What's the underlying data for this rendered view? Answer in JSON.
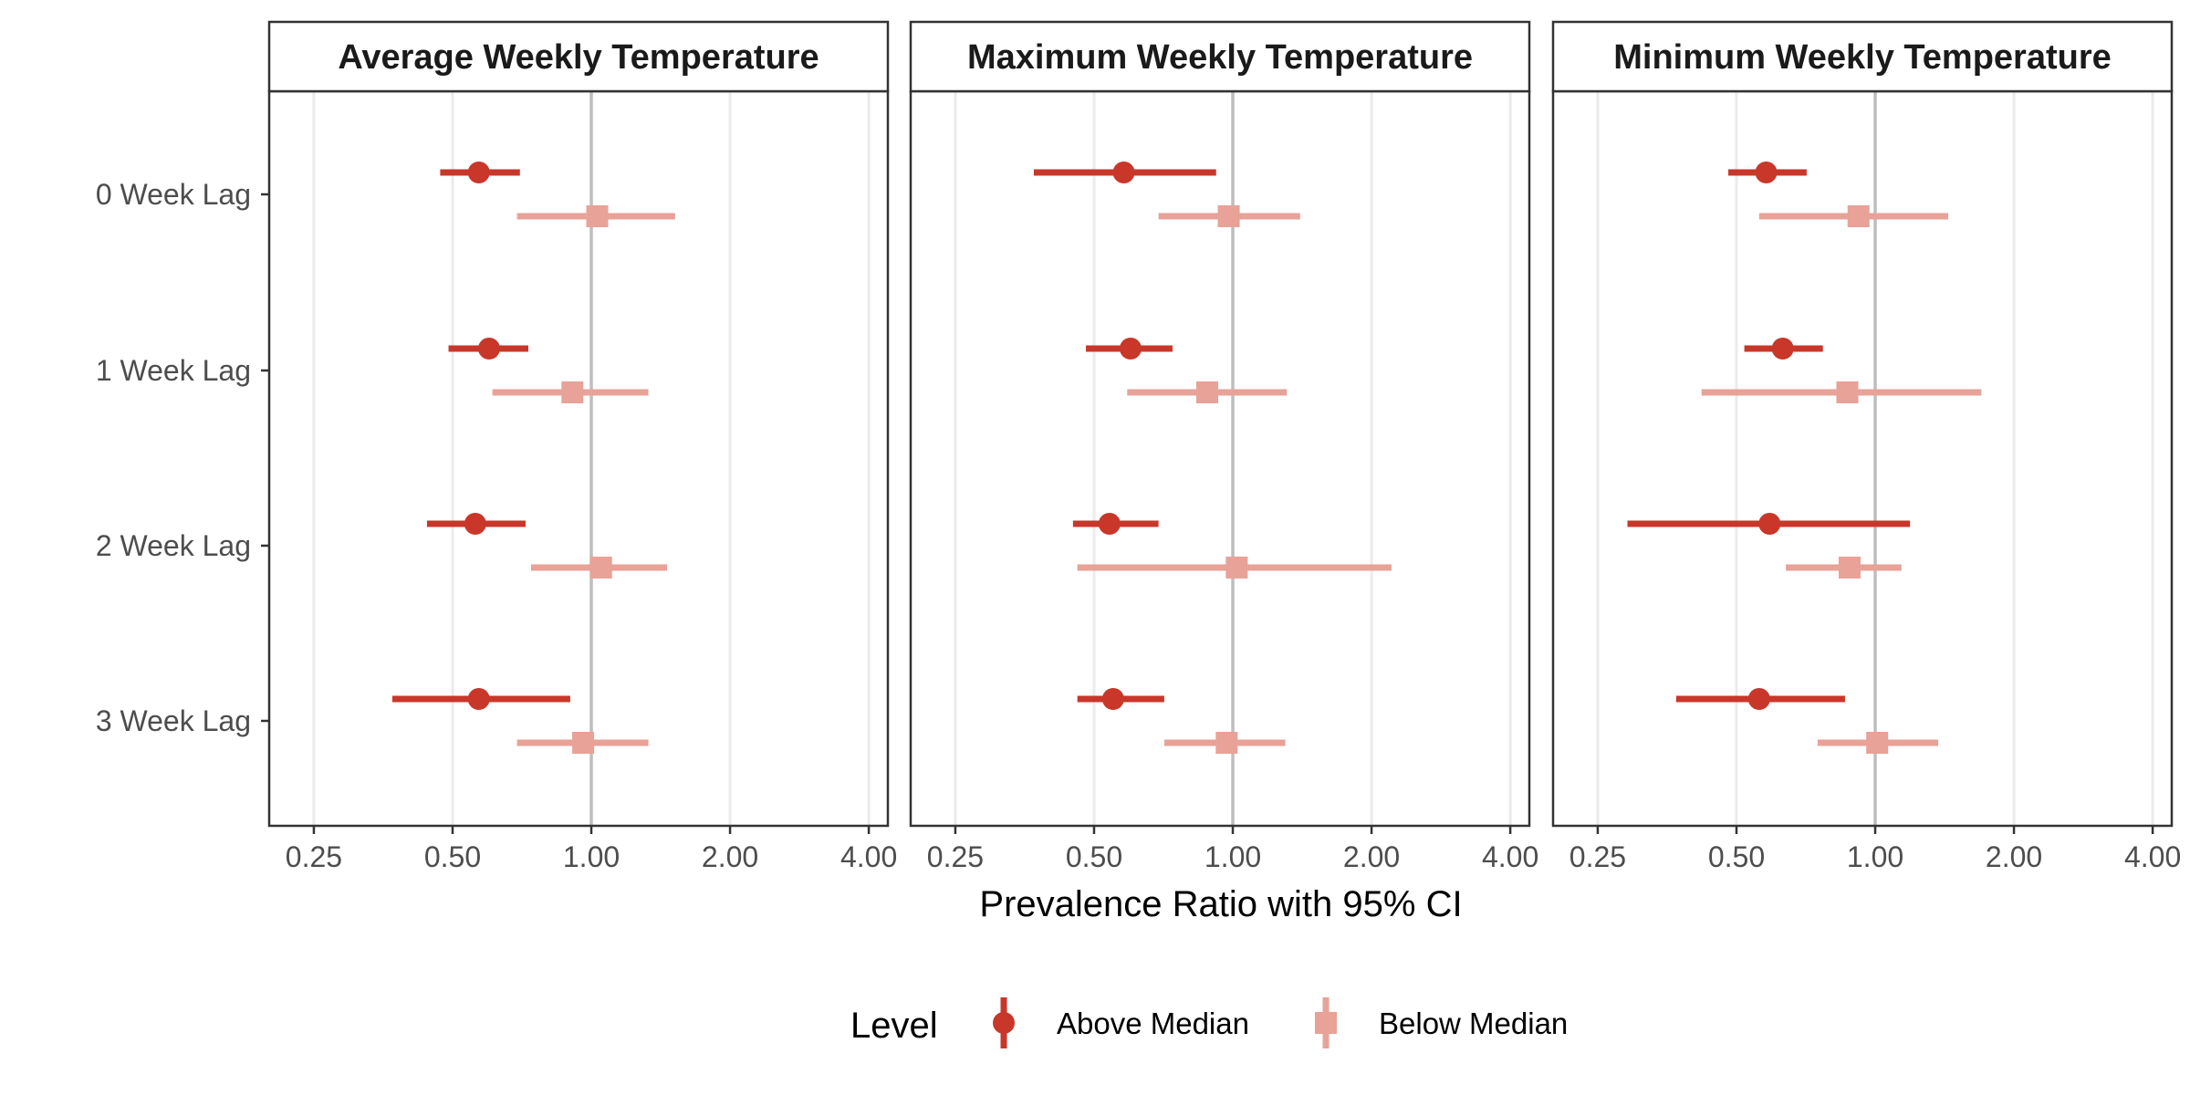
{
  "chart_data": {
    "type": "forest",
    "xlabel": "Prevalence Ratio with 95% CI",
    "x_scale": "log2",
    "xlim": [
      0.2,
      4.4
    ],
    "x_ticks": [
      0.25,
      0.5,
      1,
      2,
      4
    ],
    "x_tick_labels": [
      "0.25",
      "0.50",
      "1.00",
      "2.00",
      "4.00"
    ],
    "reference_line": 1,
    "grid": true,
    "categories": [
      "0 Week Lag",
      "1 Week Lag",
      "2 Week Lag",
      "3 Week Lag"
    ],
    "legend": {
      "title": "Level",
      "position": "bottom",
      "entries": [
        {
          "name": "Above Median",
          "color": "#c8372a",
          "shape": "circle"
        },
        {
          "name": "Below Median",
          "color": "#e8a297",
          "shape": "square"
        }
      ]
    },
    "panels": [
      {
        "title": "Average Weekly Temperature",
        "series": [
          {
            "name": "Above Median",
            "points": [
              {
                "category": "0 Week Lag",
                "estimate": 0.57,
                "lower": 0.47,
                "upper": 0.7
              },
              {
                "category": "1 Week Lag",
                "estimate": 0.6,
                "lower": 0.49,
                "upper": 0.73
              },
              {
                "category": "2 Week Lag",
                "estimate": 0.56,
                "lower": 0.44,
                "upper": 0.72
              },
              {
                "category": "3 Week Lag",
                "estimate": 0.57,
                "lower": 0.37,
                "upper": 0.9
              }
            ]
          },
          {
            "name": "Below Median",
            "points": [
              {
                "category": "0 Week Lag",
                "estimate": 1.03,
                "lower": 0.69,
                "upper": 1.52
              },
              {
                "category": "1 Week Lag",
                "estimate": 0.91,
                "lower": 0.61,
                "upper": 1.33
              },
              {
                "category": "2 Week Lag",
                "estimate": 1.05,
                "lower": 0.74,
                "upper": 1.46
              },
              {
                "category": "3 Week Lag",
                "estimate": 0.96,
                "lower": 0.69,
                "upper": 1.33
              }
            ]
          }
        ]
      },
      {
        "title": "Maximum Weekly Temperature",
        "series": [
          {
            "name": "Above Median",
            "points": [
              {
                "category": "0 Week Lag",
                "estimate": 0.58,
                "lower": 0.37,
                "upper": 0.92
              },
              {
                "category": "1 Week Lag",
                "estimate": 0.6,
                "lower": 0.48,
                "upper": 0.74
              },
              {
                "category": "2 Week Lag",
                "estimate": 0.54,
                "lower": 0.45,
                "upper": 0.69
              },
              {
                "category": "3 Week Lag",
                "estimate": 0.55,
                "lower": 0.46,
                "upper": 0.71
              }
            ]
          },
          {
            "name": "Below Median",
            "points": [
              {
                "category": "0 Week Lag",
                "estimate": 0.98,
                "lower": 0.69,
                "upper": 1.4
              },
              {
                "category": "1 Week Lag",
                "estimate": 0.88,
                "lower": 0.59,
                "upper": 1.31
              },
              {
                "category": "2 Week Lag",
                "estimate": 1.02,
                "lower": 0.46,
                "upper": 2.21
              },
              {
                "category": "3 Week Lag",
                "estimate": 0.97,
                "lower": 0.71,
                "upper": 1.3
              }
            ]
          }
        ]
      },
      {
        "title": "Minimum Weekly Temperature",
        "series": [
          {
            "name": "Above Median",
            "points": [
              {
                "category": "0 Week Lag",
                "estimate": 0.58,
                "lower": 0.48,
                "upper": 0.71
              },
              {
                "category": "1 Week Lag",
                "estimate": 0.63,
                "lower": 0.52,
                "upper": 0.77
              },
              {
                "category": "2 Week Lag",
                "estimate": 0.59,
                "lower": 0.29,
                "upper": 1.19
              },
              {
                "category": "3 Week Lag",
                "estimate": 0.56,
                "lower": 0.37,
                "upper": 0.86
              }
            ]
          },
          {
            "name": "Below Median",
            "points": [
              {
                "category": "0 Week Lag",
                "estimate": 0.92,
                "lower": 0.56,
                "upper": 1.44
              },
              {
                "category": "1 Week Lag",
                "estimate": 0.87,
                "lower": 0.42,
                "upper": 1.7
              },
              {
                "category": "2 Week Lag",
                "estimate": 0.88,
                "lower": 0.64,
                "upper": 1.14
              },
              {
                "category": "3 Week Lag",
                "estimate": 1.01,
                "lower": 0.75,
                "upper": 1.37
              }
            ]
          }
        ]
      }
    ]
  }
}
